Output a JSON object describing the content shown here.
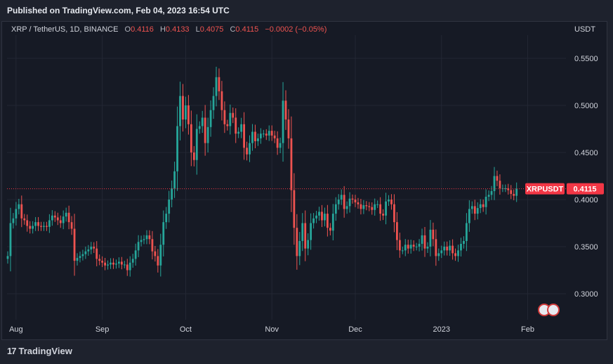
{
  "header": {
    "published": "Published on TradingView.com, Feb 04, 2023 16:54 UTC"
  },
  "legend": {
    "symbol": "XRP / TetherUS, 1D, BINANCE",
    "open_label": "O",
    "open": "0.4116",
    "high_label": "H",
    "high": "0.4133",
    "low_label": "L",
    "low": "0.4075",
    "close_label": "C",
    "close": "0.4115",
    "change": "−0.0002 (−0.05%)"
  },
  "axis": {
    "currency": "USDT"
  },
  "footer": {
    "brand": "TradingView",
    "brand_mark": "17"
  },
  "flags": [
    "flag-icon",
    "flag-icon"
  ],
  "colors": {
    "up": "#26a69a",
    "down": "#ef5350",
    "price_tag": "#f23645"
  },
  "chart_data": {
    "type": "candlestick",
    "symbol": "XRPUSDT",
    "ylim": [
      0.27,
      0.57
    ],
    "y_ticks": [
      0.3,
      0.35,
      0.4,
      0.45,
      0.5,
      0.55
    ],
    "y_tick_labels": [
      "0.3000",
      "0.3500",
      "0.4000",
      "0.4500",
      "0.5000",
      "0.5500"
    ],
    "x_labels": [
      {
        "label": "Aug",
        "day": 3
      },
      {
        "label": "Sep",
        "day": 34
      },
      {
        "label": "Oct",
        "day": 64
      },
      {
        "label": "Nov",
        "day": 95
      },
      {
        "label": "Dec",
        "day": 125
      },
      {
        "label": "2023",
        "day": 156
      },
      {
        "label": "Feb",
        "day": 187
      }
    ],
    "current_price": 0.4115,
    "current_price_label": "0.4115",
    "symbol_tag": "XRPUSDT",
    "close_series": [
      0.34,
      0.375,
      0.38,
      0.39,
      0.395,
      0.38,
      0.378,
      0.372,
      0.369,
      0.372,
      0.376,
      0.372,
      0.371,
      0.372,
      0.371,
      0.378,
      0.383,
      0.381,
      0.378,
      0.375,
      0.382,
      0.386,
      0.376,
      0.369,
      0.335,
      0.338,
      0.34,
      0.342,
      0.345,
      0.347,
      0.35,
      0.348,
      0.337,
      0.335,
      0.333,
      0.33,
      0.331,
      0.333,
      0.331,
      0.332,
      0.334,
      0.331,
      0.331,
      0.325,
      0.333,
      0.337,
      0.346,
      0.355,
      0.357,
      0.358,
      0.362,
      0.358,
      0.345,
      0.34,
      0.33,
      0.352,
      0.376,
      0.385,
      0.4,
      0.412,
      0.43,
      0.478,
      0.51,
      0.485,
      0.5,
      0.48,
      0.45,
      0.442,
      0.475,
      0.478,
      0.487,
      0.46,
      0.477,
      0.495,
      0.51,
      0.53,
      0.515,
      0.495,
      0.48,
      0.478,
      0.492,
      0.487,
      0.47,
      0.472,
      0.48,
      0.455,
      0.448,
      0.46,
      0.472,
      0.462,
      0.465,
      0.47,
      0.47,
      0.468,
      0.473,
      0.468,
      0.465,
      0.455,
      0.46,
      0.505,
      0.485,
      0.465,
      0.41,
      0.37,
      0.34,
      0.356,
      0.375,
      0.348,
      0.357,
      0.375,
      0.38,
      0.383,
      0.387,
      0.378,
      0.385,
      0.37,
      0.367,
      0.385,
      0.395,
      0.4,
      0.405,
      0.39,
      0.393,
      0.401,
      0.4,
      0.397,
      0.395,
      0.39,
      0.394,
      0.393,
      0.392,
      0.389,
      0.395,
      0.395,
      0.385,
      0.383,
      0.398,
      0.4,
      0.395,
      0.376,
      0.357,
      0.346,
      0.346,
      0.352,
      0.348,
      0.352,
      0.35,
      0.35,
      0.353,
      0.362,
      0.348,
      0.35,
      0.368,
      0.358,
      0.34,
      0.343,
      0.346,
      0.35,
      0.346,
      0.351,
      0.343,
      0.34,
      0.346,
      0.353,
      0.356,
      0.375,
      0.39,
      0.393,
      0.385,
      0.391,
      0.395,
      0.392,
      0.403,
      0.405,
      0.409,
      0.425,
      0.42,
      0.412,
      0.412,
      0.412,
      0.41,
      0.406,
      0.404,
      0.4115
    ]
  }
}
